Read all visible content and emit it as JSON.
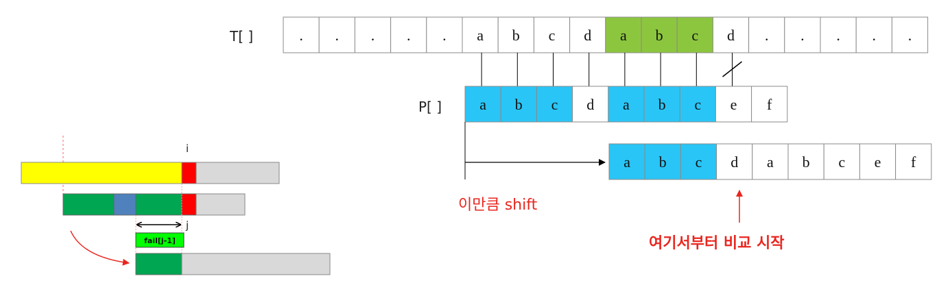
{
  "text_array": {
    "label": "T[ ]",
    "cells": [
      ".",
      ".",
      ".",
      ".",
      ".",
      "a",
      "b",
      "c",
      "d",
      "a",
      "b",
      "c",
      "d",
      ".",
      ".",
      ".",
      ".",
      "."
    ],
    "highlight": [
      9,
      10,
      11
    ]
  },
  "pattern_array": {
    "label": "P[ ]",
    "cells": [
      "a",
      "b",
      "c",
      "d",
      "a",
      "b",
      "c",
      "e",
      "f"
    ],
    "highlight": [
      0,
      1,
      2,
      4,
      5,
      6
    ]
  },
  "shifted_pattern": {
    "cells": [
      "a",
      "b",
      "c",
      "d",
      "a",
      "b",
      "c",
      "e",
      "f"
    ],
    "highlight": [
      0,
      1,
      2
    ]
  },
  "labels": {
    "shift": "이만큼 shift",
    "start_compare": "여기서부터 비교 시작"
  },
  "mini_diagram": {
    "label_i": "i",
    "label_j": "j",
    "fail_label": "fail[j-1]"
  },
  "colors": {
    "text_highlight": "#8cc63f",
    "pattern_highlight": "#29c5f6",
    "yellow_bar": "#ffff00",
    "mismatch": "#ff0000",
    "dark_green": "#00a651",
    "blue": "#4f81bd",
    "light_green": "#00ff00",
    "grey": "#d9d9d9",
    "annotation_red": "#e8261f"
  }
}
